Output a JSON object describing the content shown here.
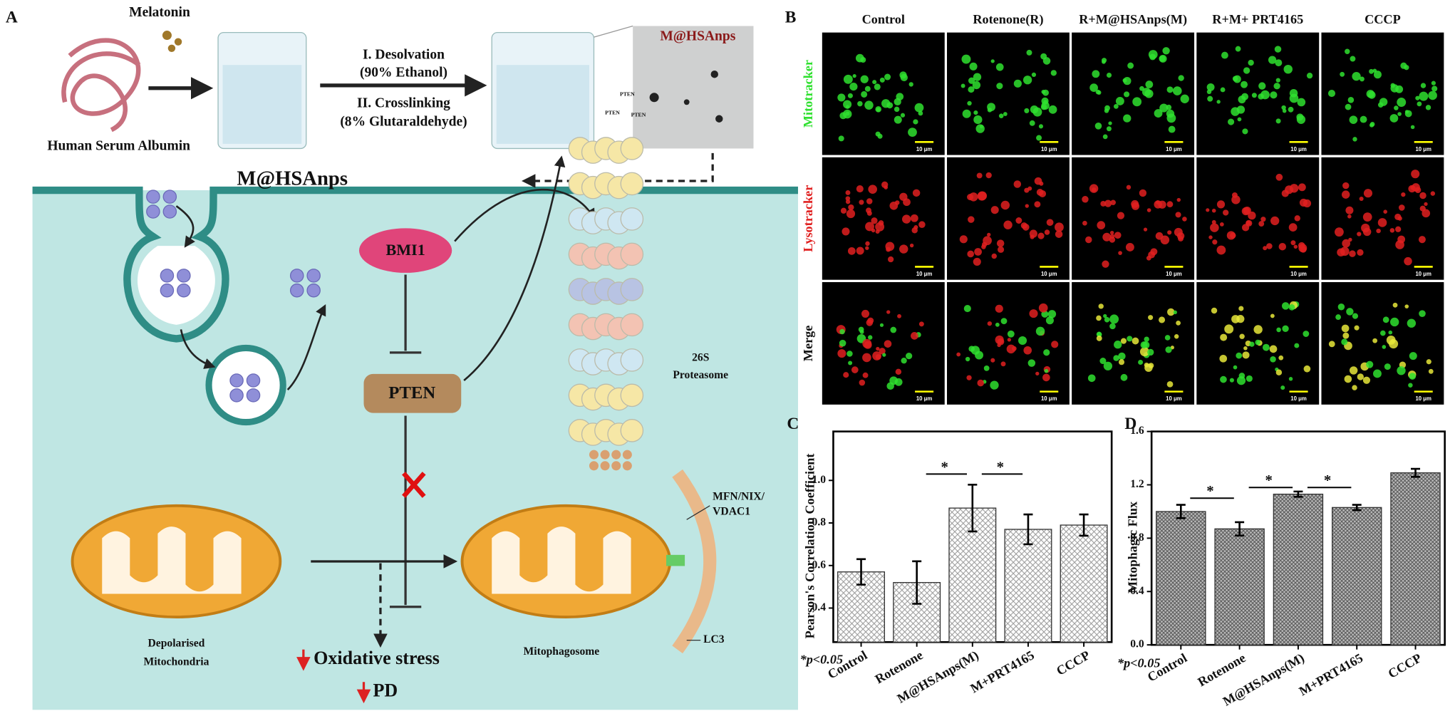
{
  "panel_a": {
    "letter": "A",
    "melatonin": "Melatonin",
    "albumin": "Human Serum Albumin",
    "step1": "I. Desolvation",
    "step1_detail": "(90% Ethanol)",
    "step2": "II. Crosslinking",
    "step2_detail": "(8% Glutaraldehyde)",
    "tem_label": "M@HSAnps",
    "nanoparticle_label": "M@HSAnps",
    "bmi1": "BMI1",
    "pten": "PTEN",
    "proteasome_tags": [
      "PTEN",
      "PTEN",
      "PTEN"
    ],
    "proteasome": [
      "26S",
      "Proteasome"
    ],
    "receptors": [
      "MFN/NIX/",
      "VDAC1"
    ],
    "lc3": "LC3",
    "depolarised": [
      "Depolarised",
      "Mitochondria"
    ],
    "mitophagosome": "Mitophagosome",
    "outcomes": [
      "Oxidative stress",
      "PD"
    ]
  },
  "panel_b": {
    "letter": "B",
    "columns": [
      "Control",
      "Rotenone(R)",
      "R+M@HSAnps(M)",
      "R+M+ PRT4165",
      "CCCP"
    ],
    "rows": [
      "Mitotracker",
      "Lysotracker",
      "Merge"
    ],
    "scale_bar": "10 μm"
  },
  "chart_data": [
    {
      "type": "bar",
      "panel": "C",
      "ylabel": "Pearson's Correlation Coefficient",
      "note": "*p<0.05",
      "categories": [
        "Control",
        "Rotenone",
        "M@HSAnps(M)",
        "M+PRT4165",
        "CCCP"
      ],
      "values": [
        0.57,
        0.52,
        0.87,
        0.77,
        0.79
      ],
      "errors": [
        0.06,
        0.1,
        0.11,
        0.07,
        0.05
      ],
      "significance": [
        "*",
        "*"
      ],
      "color": "#9a9a9a",
      "ylim": [
        0.24,
        1.23
      ],
      "yticks": [
        0.4,
        0.6,
        0.8,
        {
          "value": 1,
          "label": "1.0"
        }
      ]
    },
    {
      "type": "bar",
      "panel": "D",
      "ylabel": "Mitophagic Flux",
      "note": "*p<0.05",
      "categories": [
        "Control",
        "Rotenone",
        "M@HSAnps(M)",
        "M+PRT4165",
        "CCCP"
      ],
      "values": [
        1.0,
        0.87,
        1.13,
        1.03,
        1.29
      ],
      "errors": [
        0.05,
        0.05,
        0.02,
        0.02,
        0.03
      ],
      "significance": [
        "*",
        "*",
        "*"
      ],
      "color": "#555555",
      "ylim": [
        0,
        1.6
      ],
      "yticks": [
        {
          "value": 0,
          "label": "0.0"
        },
        0.4,
        0.8,
        1.2,
        1.6
      ]
    }
  ]
}
